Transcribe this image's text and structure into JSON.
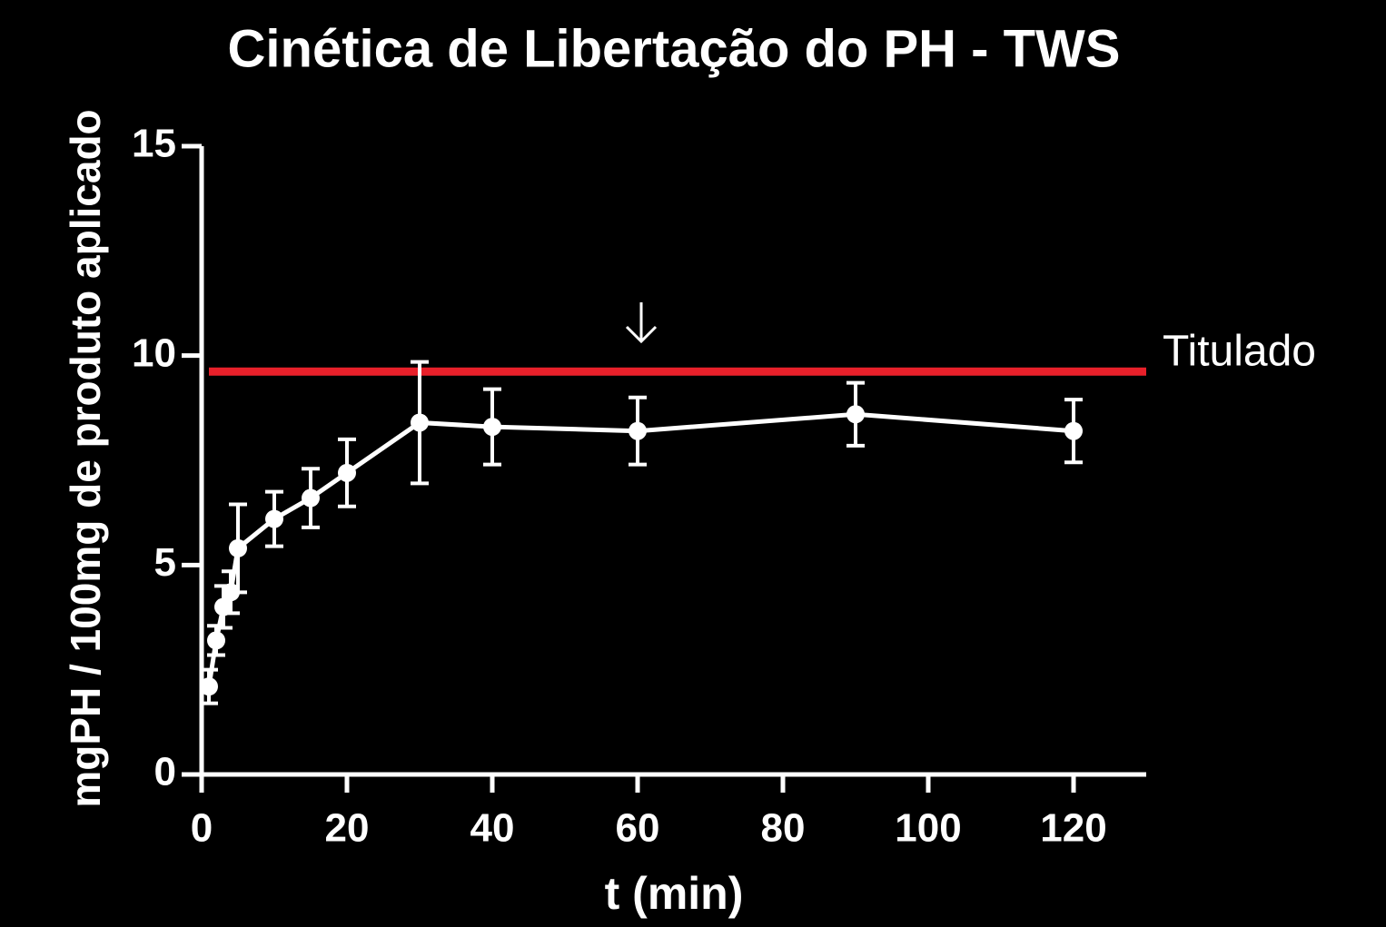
{
  "chart_data": {
    "type": "line",
    "title": "Cinética de Libertação do PH - TWS",
    "x_label": "t (min)",
    "y_label": "mgPH / 100mg de produto aplicado",
    "x": [
      1,
      2,
      3,
      4,
      5,
      10,
      15,
      20,
      30,
      40,
      60,
      90,
      120
    ],
    "series": [
      {
        "color": "#ffffff",
        "values": [
          2.1,
          3.2,
          4.0,
          4.35,
          5.4,
          6.1,
          6.6,
          7.2,
          8.4,
          8.3,
          8.2,
          8.6,
          8.2
        ],
        "errors": [
          0.4,
          0.35,
          0.5,
          0.5,
          1.05,
          0.65,
          0.7,
          0.8,
          1.45,
          0.9,
          0.8,
          0.75,
          0.75
        ]
      }
    ],
    "reference_line": {
      "value": 9.62,
      "label": "Titulado",
      "color": "#e8202a"
    },
    "xlim": [
      0,
      130
    ],
    "xticks": [
      0,
      20,
      40,
      60,
      80,
      100,
      120
    ],
    "ylim": [
      0,
      15
    ],
    "yticks": [
      0,
      5,
      10,
      15
    ],
    "grid": false
  }
}
